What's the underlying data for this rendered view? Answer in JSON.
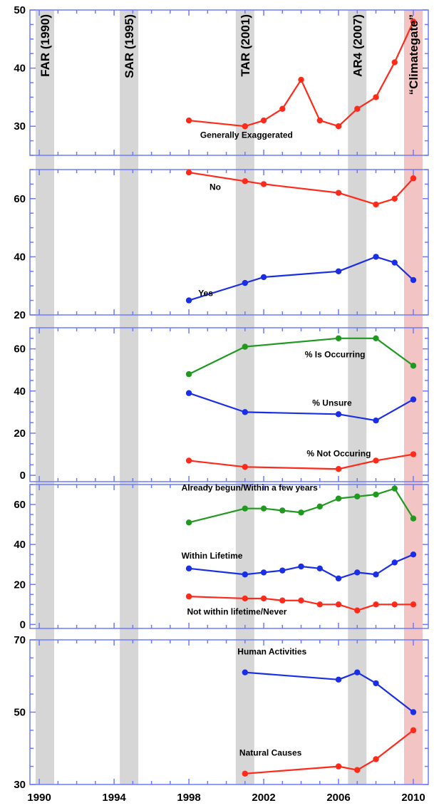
{
  "chart_data": {
    "type": "line",
    "x_axis": {
      "range": [
        1989.5,
        2010.8
      ],
      "ticks": [
        1990,
        1994,
        1998,
        2002,
        2006,
        2010
      ],
      "tick_labels": [
        "1990",
        "1994",
        "1998",
        "2002",
        "2006",
        "2010"
      ]
    },
    "events": [
      {
        "label": "FAR (1990)",
        "x": 1990.3,
        "color": "#d6d6d6"
      },
      {
        "label": "SAR (1995)",
        "x": 1994.8,
        "color": "#d6d6d6"
      },
      {
        "label": "TAR (2001)",
        "x": 2001.0,
        "color": "#d6d6d6"
      },
      {
        "label": "AR4 (2007)",
        "x": 2007.0,
        "color": "#d6d6d6"
      },
      {
        "label": "“Climategate”",
        "x": 2010.0,
        "color": "#f2c4c4"
      }
    ],
    "panels": [
      {
        "ylim": [
          25,
          50
        ],
        "y_ticks": [
          30,
          40,
          50
        ],
        "y_tick_labels": [
          "30",
          "40",
          "50"
        ],
        "series": [
          {
            "color": "#ff2a1a",
            "x": [
              1998,
              2001,
              2002,
              2003,
              2004,
              2005,
              2006,
              2007,
              2008,
              2009,
              2010
            ],
            "y": [
              31,
              30,
              31,
              33,
              38,
              31,
              30,
              33,
              35,
              41,
              48
            ]
          }
        ],
        "annotations": [
          {
            "text": "Generally Exaggerated",
            "x": 1998.6,
            "y": 28
          }
        ]
      },
      {
        "ylim": [
          20,
          70
        ],
        "y_ticks": [
          20,
          40,
          60
        ],
        "y_tick_labels": [
          "20",
          "40",
          "60"
        ],
        "series": [
          {
            "color": "#ff2a1a",
            "x": [
              1998,
              2001,
              2002,
              2006,
              2008,
              2009,
              2010
            ],
            "y": [
              69,
              66,
              65,
              62,
              58,
              60,
              67
            ]
          },
          {
            "color": "#1a2ee6",
            "x": [
              1998,
              2001,
              2002,
              2006,
              2008,
              2009,
              2010
            ],
            "y": [
              25,
              31,
              33,
              35,
              40,
              38,
              32
            ]
          }
        ],
        "annotations": [
          {
            "text": "No",
            "x": 1999.1,
            "y": 63
          },
          {
            "text": "Yes",
            "x": 1998.5,
            "y": 26.5
          }
        ]
      },
      {
        "ylim": [
          -3,
          70
        ],
        "y_ticks": [
          0,
          20,
          40,
          60
        ],
        "y_tick_labels": [
          "0",
          "20",
          "40",
          "60"
        ],
        "series": [
          {
            "color": "#1f9a1f",
            "x": [
              1998,
              2001,
              2006,
              2008,
              2010
            ],
            "y": [
              48,
              61,
              65,
              65,
              52
            ]
          },
          {
            "color": "#1a2ee6",
            "x": [
              1998,
              2001,
              2006,
              2008,
              2010
            ],
            "y": [
              39,
              30,
              29,
              26,
              36
            ]
          },
          {
            "color": "#ff2a1a",
            "x": [
              1998,
              2001,
              2006,
              2008,
              2010
            ],
            "y": [
              7,
              4,
              3,
              7,
              10
            ]
          }
        ],
        "annotations": [
          {
            "text": "% Is Occurring",
            "x": 2004.2,
            "y": 56
          },
          {
            "text": "% Unsure",
            "x": 2004.6,
            "y": 33
          },
          {
            "text": "% Not Occuring",
            "x": 2004.3,
            "y": 9
          }
        ]
      },
      {
        "ylim": [
          -2,
          70
        ],
        "y_ticks": [
          0,
          20,
          40,
          60
        ],
        "y_tick_labels": [
          "0",
          "20",
          "40",
          "60"
        ],
        "series": [
          {
            "color": "#1f9a1f",
            "x": [
              1998,
              2001,
              2002,
              2003,
              2004,
              2005,
              2006,
              2007,
              2008,
              2009,
              2010
            ],
            "y": [
              51,
              58,
              58,
              57,
              56,
              59,
              63,
              64,
              65,
              68,
              53
            ]
          },
          {
            "color": "#1a2ee6",
            "x": [
              1998,
              2001,
              2002,
              2003,
              2004,
              2005,
              2006,
              2007,
              2008,
              2009,
              2010
            ],
            "y": [
              28,
              25,
              26,
              27,
              29,
              28,
              23,
              26,
              25,
              31,
              35
            ]
          },
          {
            "color": "#ff2a1a",
            "x": [
              1998,
              2001,
              2002,
              2003,
              2004,
              2005,
              2006,
              2007,
              2008,
              2009,
              2010
            ],
            "y": [
              14,
              13,
              13,
              12,
              12,
              10,
              10,
              7,
              10,
              10,
              10
            ]
          }
        ],
        "annotations": [
          {
            "text": "Already begun/Within a few years",
            "x": 1997.6,
            "y": 67
          },
          {
            "text": "Within Lifetime",
            "x": 1997.6,
            "y": 33
          },
          {
            "text": "Not within lifetime/Never",
            "x": 1997.9,
            "y": 5
          }
        ]
      },
      {
        "ylim": [
          30,
          70
        ],
        "y_ticks": [
          30,
          50,
          70
        ],
        "y_tick_labels": [
          "30",
          "50",
          "70"
        ],
        "series": [
          {
            "color": "#1a2ee6",
            "x": [
              2001,
              2006,
              2007,
              2008,
              2010
            ],
            "y": [
              61,
              59,
              61,
              58,
              50
            ]
          },
          {
            "color": "#ff2a1a",
            "x": [
              2001,
              2006,
              2007,
              2008,
              2010
            ],
            "y": [
              33,
              35,
              34,
              37,
              45
            ]
          }
        ],
        "annotations": [
          {
            "text": "Human Activities",
            "x": 2000.6,
            "y": 66
          },
          {
            "text": "Natural Causes",
            "x": 2000.7,
            "y": 38
          }
        ]
      }
    ]
  }
}
